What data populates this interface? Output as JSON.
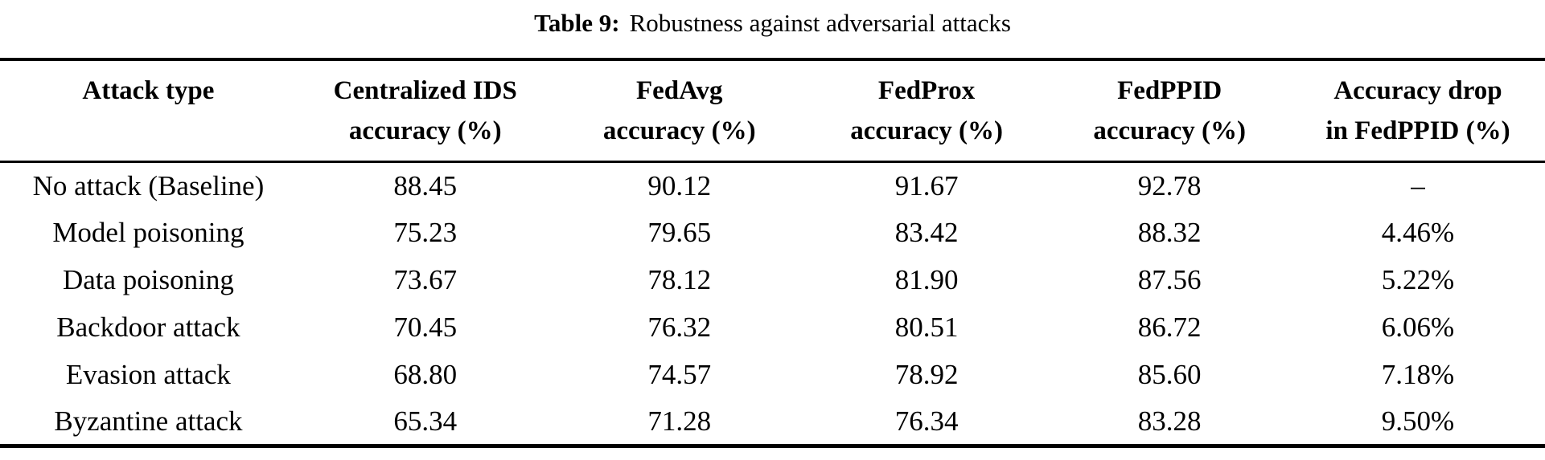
{
  "title": {
    "label": "Table 9:",
    "text": "Robustness against adversarial attacks"
  },
  "table": {
    "columns": [
      {
        "line1": "Attack type",
        "line2": ""
      },
      {
        "line1": "Centralized IDS",
        "line2": "accuracy (%)"
      },
      {
        "line1": "FedAvg",
        "line2": "accuracy (%)"
      },
      {
        "line1": "FedProx",
        "line2": "accuracy (%)"
      },
      {
        "line1": "FedPPID",
        "line2": "accuracy (%)"
      },
      {
        "line1": "Accuracy drop",
        "line2": "in FedPPID (%)"
      }
    ],
    "rows": [
      [
        "No attack (Baseline)",
        "88.45",
        "90.12",
        "91.67",
        "92.78",
        "–"
      ],
      [
        "Model poisoning",
        "75.23",
        "79.65",
        "83.42",
        "88.32",
        "4.46%"
      ],
      [
        "Data poisoning",
        "73.67",
        "78.12",
        "81.90",
        "87.56",
        "5.22%"
      ],
      [
        "Backdoor attack",
        "70.45",
        "76.32",
        "80.51",
        "86.72",
        "6.06%"
      ],
      [
        "Evasion attack",
        "68.80",
        "74.57",
        "78.92",
        "85.60",
        "7.18%"
      ],
      [
        "Byzantine attack",
        "65.34",
        "71.28",
        "76.34",
        "83.28",
        "9.50%"
      ]
    ],
    "column_widths_pct": [
      19.2,
      16.65,
      16.25,
      15.75,
      15.7,
      16.45
    ]
  },
  "colors": {
    "background": "#ffffff",
    "text": "#000000",
    "rule": "#000000"
  }
}
